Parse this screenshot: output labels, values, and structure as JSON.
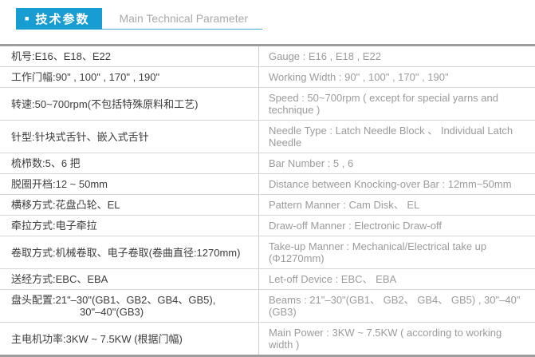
{
  "header": {
    "bullet": "■",
    "badge_label": "技术参数",
    "title_en": "Main Technical Parameter"
  },
  "colors": {
    "accent_blue": "#189dd3",
    "header_underline": "#45acd9",
    "table_outer_border": "#9c9c9c",
    "row_divider": "#d6d6d6",
    "cn_text": "#3d3d3d",
    "en_text": "#9b9b9b",
    "badge_text": "#ffffff"
  },
  "table": {
    "rows": [
      {
        "cn": "机号:E16、E18、E22",
        "en": "Gauge : E16 , E18 , E22"
      },
      {
        "cn": "工作门幅:90\" , 100\" , 170\" , 190\"",
        "en": "Working Width : 90\" , 100\" , 170\" , 190\""
      },
      {
        "cn": "转速:50~700rpm(不包括特殊原料和工艺)",
        "en": "Speed : 50~700rpm ( except for special yarns and technique )"
      },
      {
        "cn": "针型:针块式舌针、嵌入式舌针",
        "en": "Needle Type : Latch Needle Block 、 Individual Latch Needle"
      },
      {
        "cn": "梳栉数:5、6 把",
        "en": "Bar Number : 5 , 6"
      },
      {
        "cn": "脱圈开档:12 ~ 50mm",
        "en": "Distance between Knocking-over Bar : 12mm~50mm"
      },
      {
        "cn": "横移方式:花盘凸轮、EL",
        "en": "Pattern Manner : Cam Disk、 EL"
      },
      {
        "cn": "牵拉方式:电子牵拉",
        "en": "Draw-off Manner : Electronic Draw-off"
      },
      {
        "cn": "卷取方式:机械卷取、电子卷取(卷曲直径:1270mm)",
        "en": "Take-up Manner :  Mechanical/Electrical take up (Φ1270mm)"
      },
      {
        "cn": "送经方式:EBC、EBA",
        "en": "Let-off Device : EBC、 EBA"
      },
      {
        "cn": "盘头配置:21\"–30\"(GB1、GB2、GB4、GB5),",
        "cn2": "30\"–40\"(GB3)",
        "en": "Beams : 21\"–30\"(GB1、 GB2、 GB4、 GB5) , 30\"–40\"(GB3)"
      },
      {
        "cn": "主电机功率:3KW ~ 7.5KW (根据门幅)",
        "en": "Main Power : 3KW ~ 7.5KW ( according to working width )"
      }
    ]
  }
}
